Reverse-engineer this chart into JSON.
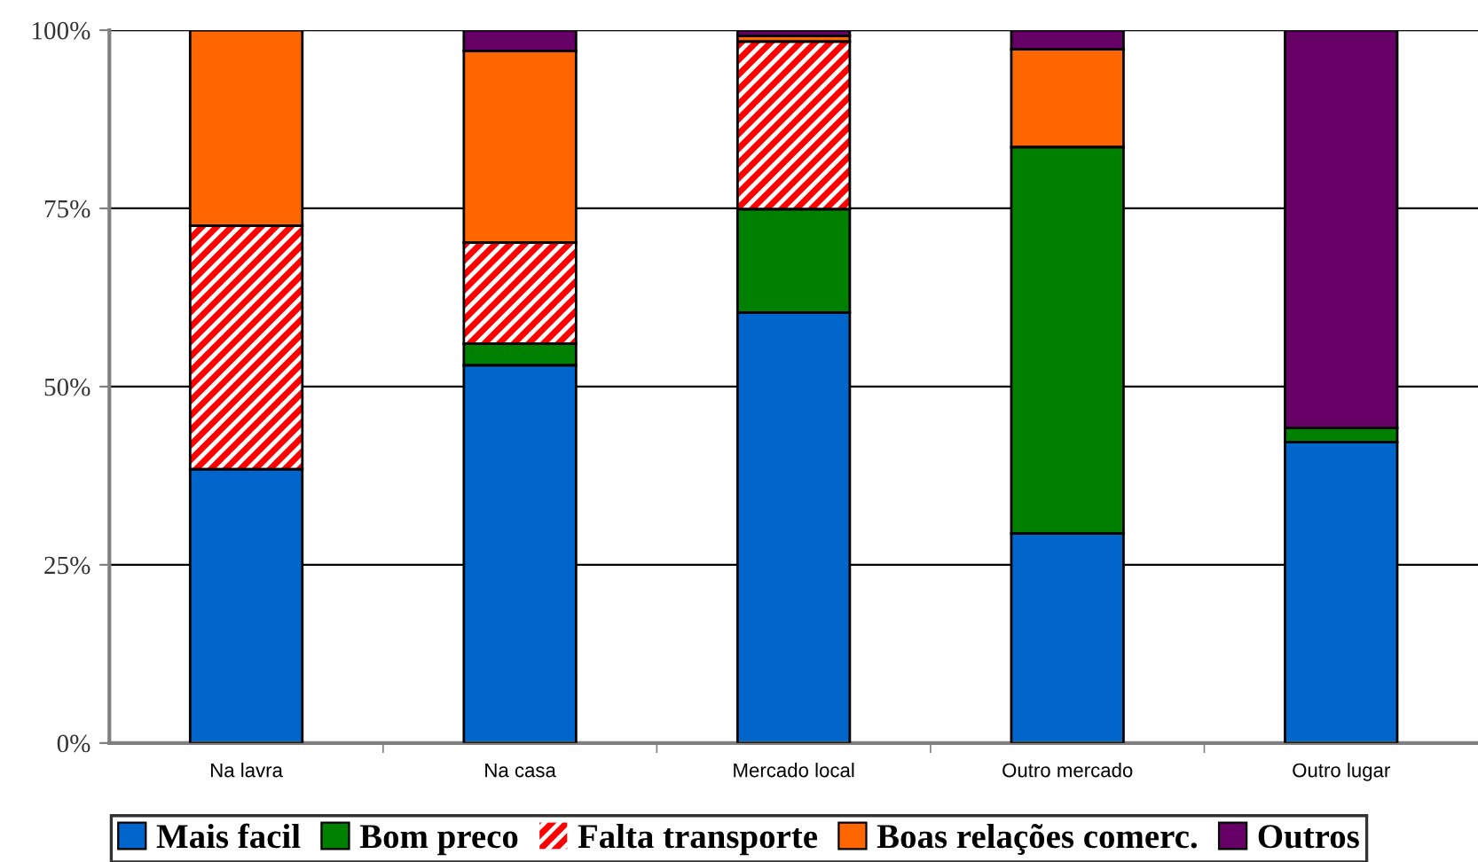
{
  "chart_data": {
    "type": "bar",
    "stacked": true,
    "categories": [
      "Na lavra",
      "Na casa",
      "Mercado local",
      "Outro mercado",
      "Outro lugar"
    ],
    "series": [
      {
        "name": "Mais facil",
        "color": "#0066cc",
        "values": [
          38.4,
          53.0,
          60.4,
          29.4,
          42.2
        ]
      },
      {
        "name": "Bom preco",
        "color": "#008000",
        "values": [
          0,
          3.0,
          14.5,
          54.2,
          2.0
        ]
      },
      {
        "name": "Falta transporte",
        "color": "#ff0000",
        "values": [
          34.2,
          14.2,
          23.5,
          0,
          0
        ]
      },
      {
        "name": "Boas relações comerc.",
        "color": "#ff6600",
        "values": [
          27.4,
          26.9,
          0.8,
          13.7,
          0
        ]
      },
      {
        "name": "Outros",
        "color": "#660066",
        "values": [
          0,
          2.9,
          0.8,
          2.7,
          55.8
        ]
      }
    ],
    "ylim": [
      0,
      100
    ],
    "yticks": [
      {
        "value": 0,
        "label": "0%"
      },
      {
        "value": 25,
        "label": "25%"
      },
      {
        "value": 50,
        "label": "50%"
      },
      {
        "value": 75,
        "label": "75%"
      },
      {
        "value": 100,
        "label": "100%"
      }
    ],
    "grid": "y",
    "legend": "bottom"
  }
}
